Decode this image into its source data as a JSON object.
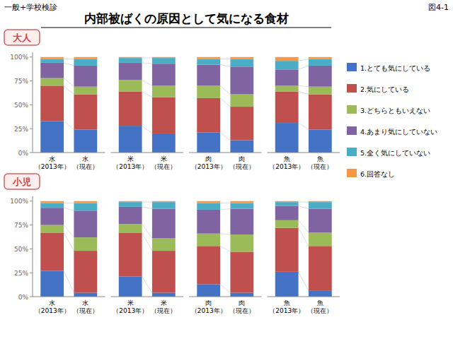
{
  "title": "内部被ばくの原因として気になる食材",
  "subtitle": "一般+学校検診",
  "annotations": [
    "図4-1"
  ],
  "chart_data": [
    {
      "type": "bar",
      "stacked": true,
      "title": "大人",
      "categories": [
        "水\n（2013年）",
        "水\n（現在）",
        "米\n（2013年）",
        "米\n（現在）",
        "肉\n（2013年）",
        "肉\n（現在）",
        "魚\n（2013年）",
        "魚\n（現在）"
      ],
      "series": [
        {
          "name": "1.とても気にしている",
          "color": "#4472C4",
          "values": [
            33,
            24,
            28,
            20,
            21,
            13,
            31,
            24
          ]
        },
        {
          "name": "2.気にしている",
          "color": "#C0504D",
          "values": [
            37,
            37,
            36,
            38,
            36,
            35,
            33,
            37
          ]
        },
        {
          "name": "3.どちらともいえない",
          "color": "#9BBB59",
          "values": [
            8,
            8,
            12,
            12,
            13,
            13,
            6,
            8
          ]
        },
        {
          "name": "4.あまり気にしていない",
          "color": "#8064A2",
          "values": [
            16,
            22,
            18,
            23,
            22,
            29,
            17,
            22
          ]
        },
        {
          "name": "5.全く気にしていない",
          "color": "#4BACC6",
          "values": [
            4,
            7,
            5,
            6,
            6,
            8,
            9,
            7
          ]
        },
        {
          "name": "6.回答なし",
          "color": "#F79646",
          "values": [
            2,
            2,
            1,
            1,
            2,
            2,
            4,
            2
          ]
        }
      ],
      "ylim": [
        0,
        105
      ],
      "yticks": [
        {
          "value": 0,
          "label": "0%"
        },
        {
          "value": 25,
          "label": "25%"
        },
        {
          "value": 50,
          "label": "50%"
        },
        {
          "value": 75,
          "label": "75%"
        },
        {
          "value": 100,
          "label": "100%"
        }
      ],
      "grid": false,
      "legend": "right"
    },
    {
      "type": "bar",
      "stacked": true,
      "title": "小児",
      "categories": [
        "水\n（2013年）",
        "水\n（現在）",
        "米\n（2013年）",
        "米\n（現在）",
        "肉\n（2013年）",
        "肉\n（現在）",
        "魚\n（2013年）",
        "魚\n（現在）"
      ],
      "series": [
        {
          "name": "1.とても気にしている",
          "color": "#4472C4",
          "values": [
            27,
            4,
            21,
            4,
            13,
            4,
            26,
            6
          ]
        },
        {
          "name": "2.気にしている",
          "color": "#C0504D",
          "values": [
            40,
            44,
            46,
            44,
            40,
            43,
            46,
            47
          ]
        },
        {
          "name": "3.どちらともいえない",
          "color": "#9BBB59",
          "values": [
            8,
            14,
            9,
            13,
            13,
            18,
            8,
            14
          ]
        },
        {
          "name": "4.あまり気にしていない",
          "color": "#8064A2",
          "values": [
            18,
            28,
            18,
            31,
            25,
            27,
            15,
            25
          ]
        },
        {
          "name": "5.全く気にしていない",
          "color": "#4BACC6",
          "values": [
            5,
            8,
            5,
            7,
            7,
            6,
            4,
            7
          ]
        },
        {
          "name": "6.回答なし",
          "color": "#F79646",
          "values": [
            2,
            2,
            1,
            1,
            2,
            2,
            1,
            1
          ]
        }
      ],
      "ylim": [
        0,
        105
      ],
      "yticks": [
        {
          "value": 0,
          "label": "0%"
        },
        {
          "value": 25,
          "label": "25%"
        },
        {
          "value": 50,
          "label": "50%"
        },
        {
          "value": 75,
          "label": "75%"
        },
        {
          "value": 100,
          "label": "100%"
        }
      ],
      "grid": false,
      "legend": "right"
    }
  ]
}
